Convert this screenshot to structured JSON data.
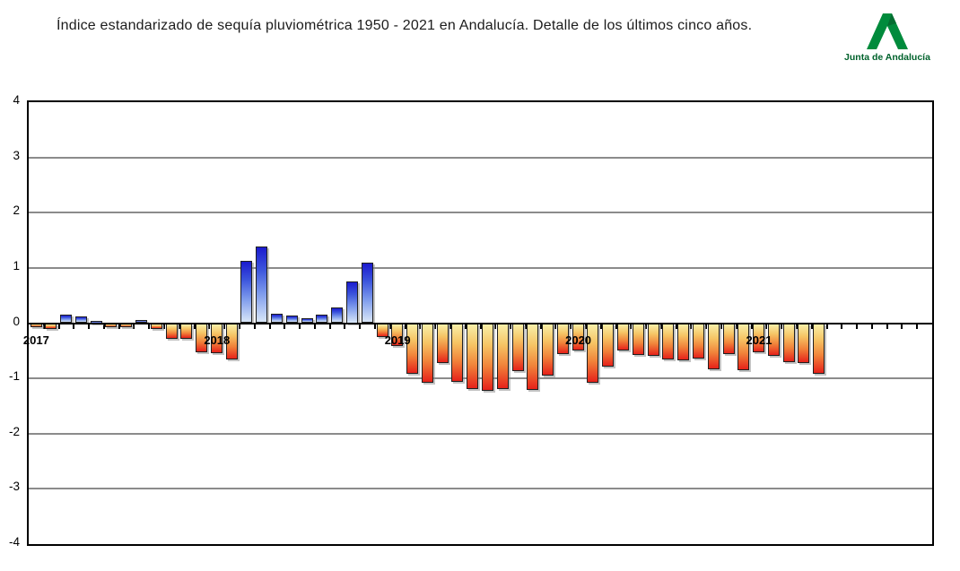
{
  "title": "Índice estandarizado de sequía pluviométrica 1950 - 2021 en Andalucía. Detalle de los últimos cinco años.",
  "logo": {
    "text": "Junta de Andalucía",
    "green": "#008B3C",
    "text_color": "#00622C"
  },
  "chart_data": {
    "type": "bar",
    "title": "Índice estandarizado de sequía pluviométrica 1950 - 2021 en Andalucía. Detalle de los últimos cinco años.",
    "xlabel": "",
    "ylabel": "",
    "ylim": [
      -4,
      4
    ],
    "ytick_labels": [
      "4",
      "3",
      "2",
      "1",
      "0",
      "-1",
      "-2",
      "-3",
      "-4"
    ],
    "yticks": [
      4,
      3,
      2,
      1,
      0,
      -1,
      -2,
      -3,
      -4
    ],
    "grid": "horizontal",
    "legend": "none",
    "x_unit": "month",
    "x_range": "2017-01 to 2021-12",
    "year_labels": [
      "2017",
      "2018",
      "2019",
      "2020",
      "2021"
    ],
    "positive_color_top": "#1B1BCE",
    "positive_color_bottom": "#D8E6F8",
    "negative_color_top": "#F8EFA8",
    "negative_color_bottom": "#E6221A",
    "series": [
      {
        "year": "2017",
        "values": [
          -0.07,
          -0.11,
          0.16,
          0.12,
          0.04,
          -0.08,
          -0.08,
          0.06,
          -0.1,
          -0.28,
          -0.28,
          -0.52
        ]
      },
      {
        "year": "2018",
        "values": [
          -0.55,
          -0.66,
          1.13,
          1.38,
          0.17,
          0.13,
          0.09,
          0.15,
          0.28,
          0.75,
          1.1,
          -0.25
        ]
      },
      {
        "year": "2019",
        "values": [
          -0.42,
          -0.92,
          -1.08,
          -0.72,
          -1.06,
          -1.19,
          -1.22,
          -1.19,
          -0.87,
          -1.21,
          -0.95,
          -0.56
        ]
      },
      {
        "year": "2020",
        "values": [
          -0.5,
          -1.08,
          -0.78,
          -0.5,
          -0.57,
          -0.6,
          -0.66,
          -0.68,
          -0.64,
          -0.83,
          -0.56,
          -0.86
        ]
      },
      {
        "year": "2021",
        "values": [
          -0.53,
          -0.6,
          -0.71,
          -0.73,
          -0.92,
          null,
          null,
          null,
          null,
          null,
          null,
          null
        ]
      }
    ]
  }
}
